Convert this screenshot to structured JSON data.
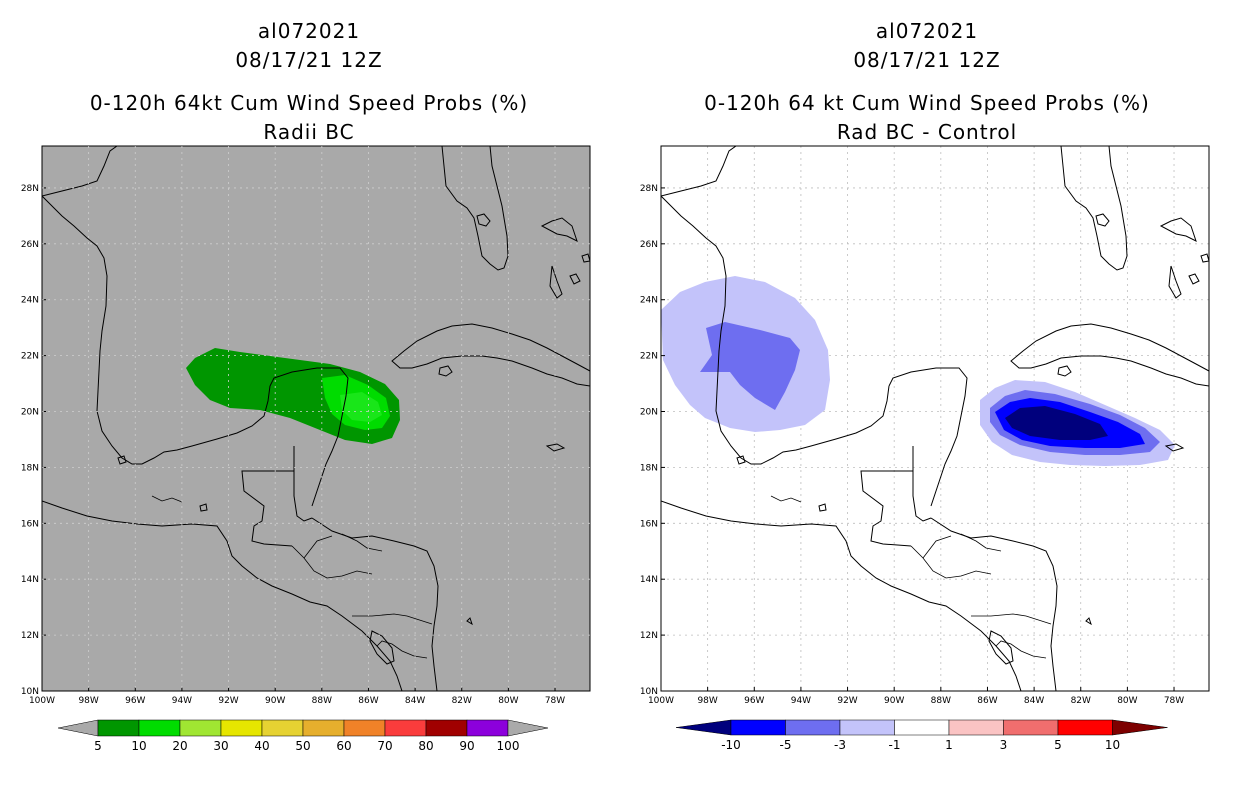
{
  "left": {
    "storm": "al072021",
    "date": "08/17/21 12Z",
    "title": "0-120h 64kt Cum Wind Speed Probs (%)",
    "subtitle": "Radii BC",
    "colorbar": {
      "labels": [
        "5",
        "10",
        "20",
        "30",
        "40",
        "50",
        "60",
        "70",
        "80",
        "90",
        "100"
      ],
      "colors": [
        "#009600",
        "#00dc00",
        "#a0e632",
        "#e6e600",
        "#e6d232",
        "#e6af2d",
        "#f08228",
        "#fa3c3c",
        "#a00000",
        "#8c00dc",
        "#aaaaaa"
      ]
    },
    "background": "#a9a9a9"
  },
  "right": {
    "storm": "al072021",
    "date": "08/17/21 12Z",
    "title": "0-120h 64 kt Cum Wind Speed Probs (%)",
    "subtitle": "Rad BC - Control",
    "colorbar": {
      "labels": [
        "-10",
        "-5",
        "-3",
        "-1",
        "1",
        "3",
        "5",
        "10"
      ],
      "colors": [
        "#00007d",
        "#0000ff",
        "#6e6ef0",
        "#c3c3fa",
        "#ffffff",
        "#fac3c3",
        "#f06e6e",
        "#ff0000",
        "#7d0000"
      ]
    },
    "background": "#ffffff"
  },
  "axes": {
    "lat_labels": [
      "28N",
      "26N",
      "24N",
      "22N",
      "20N",
      "18N",
      "16N",
      "14N",
      "12N",
      "10N"
    ],
    "lon_labels": [
      "100W",
      "98W",
      "96W",
      "94W",
      "92W",
      "90W",
      "88W",
      "86W",
      "84W",
      "82W",
      "80W",
      "78W"
    ]
  }
}
